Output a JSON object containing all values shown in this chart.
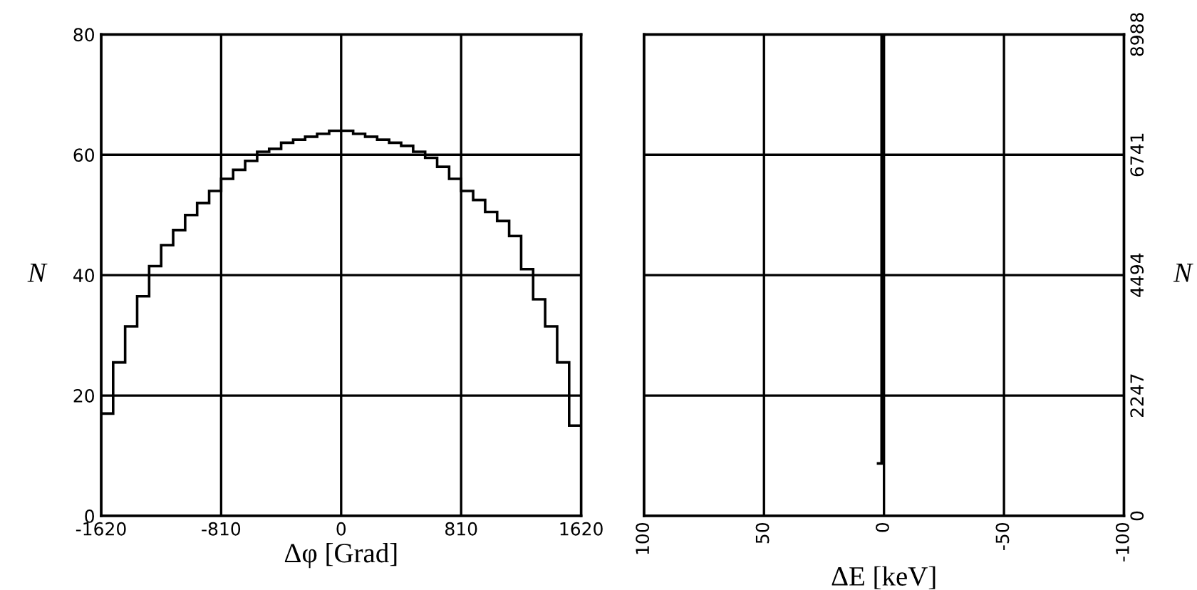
{
  "chart_data": [
    {
      "type": "histogram",
      "xlabel": "Δφ [Grad]",
      "ylabel": "N",
      "color": "#000000",
      "bins": [
        -1620,
        -1539,
        -1458,
        -1377,
        -1296,
        -1215,
        -1134,
        -1053,
        -972,
        -891,
        -810,
        -729,
        -648,
        -567,
        -486,
        -405,
        -324,
        -243,
        -162,
        -81,
        0,
        81,
        162,
        243,
        324,
        405,
        486,
        567,
        648,
        729,
        810,
        891,
        972,
        1053,
        1134,
        1215,
        1296,
        1377,
        1458,
        1539,
        1620
      ],
      "values": [
        17,
        25.5,
        31.5,
        36.5,
        41.5,
        45,
        47.5,
        50,
        52,
        54,
        56,
        57.5,
        59,
        60.5,
        61,
        62,
        62.5,
        63,
        63.5,
        64,
        64,
        63.5,
        63,
        62.5,
        62,
        61.5,
        60.5,
        59.5,
        58,
        56,
        54,
        52.5,
        50.5,
        49,
        46.5,
        41,
        36,
        31.5,
        25.5,
        15
      ],
      "xlim": [
        -1620,
        1620
      ],
      "ylim": [
        0,
        80
      ],
      "xticks": [
        -1620,
        -810,
        0,
        810,
        1620
      ],
      "yticks": [
        0,
        20,
        40,
        60,
        80
      ],
      "grid": true
    },
    {
      "type": "histogram",
      "xlabel": "ΔE [keV]",
      "ylabel": "N",
      "color": "#000000",
      "bins": [
        -1,
        1,
        3
      ],
      "values": [
        8988,
        980
      ],
      "xlim": [
        100,
        -100
      ],
      "ylim": [
        0,
        8988
      ],
      "xticks": [
        100,
        50,
        0,
        -50,
        -100
      ],
      "yticks": [
        0,
        2247,
        4494,
        6741,
        8988
      ],
      "grid": true
    }
  ]
}
